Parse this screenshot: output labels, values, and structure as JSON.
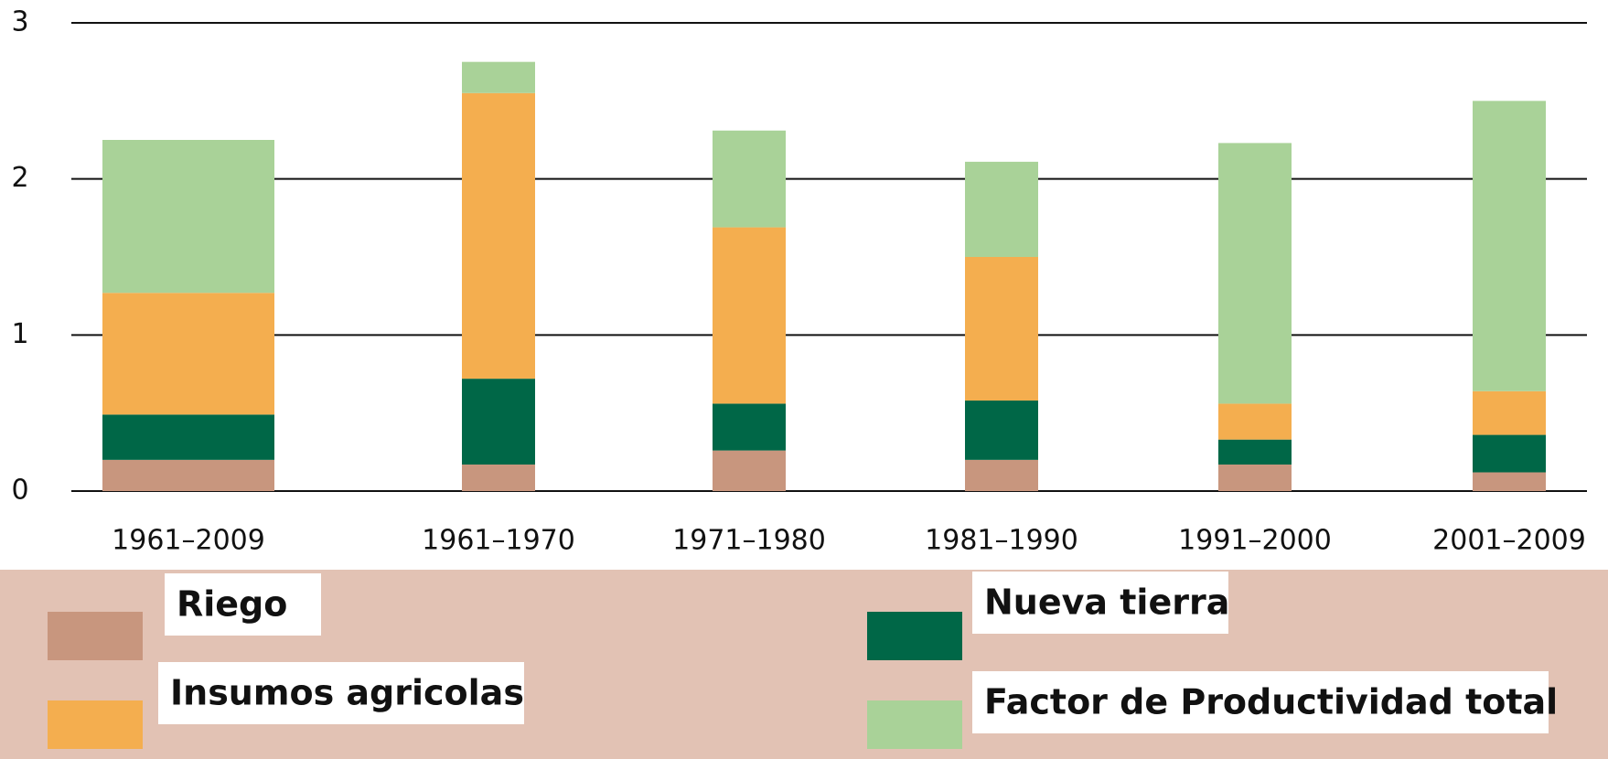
{
  "chart_data": {
    "type": "bar",
    "stacked": true,
    "categories": [
      "1961–2009",
      "1961–1970",
      "1971–1980",
      "1981–1990",
      "1991–2000",
      "2001–2009"
    ],
    "series": [
      {
        "name": "Riego",
        "color": "#c8967e",
        "values": [
          0.2,
          0.17,
          0.26,
          0.2,
          0.17,
          0.12
        ]
      },
      {
        "name": "Nueva tierra",
        "color": "#006747",
        "values": [
          0.29,
          0.55,
          0.3,
          0.38,
          0.16,
          0.24
        ]
      },
      {
        "name": "Insumos agricolas",
        "color": "#f4ae4f",
        "values": [
          0.78,
          1.83,
          1.13,
          0.92,
          0.23,
          0.28
        ]
      },
      {
        "name": "Factor de Productividad total",
        "color": "#a9d298",
        "values": [
          0.98,
          0.2,
          0.62,
          0.61,
          1.67,
          1.86
        ]
      }
    ],
    "ylim": [
      0,
      3
    ],
    "yticks": [
      0,
      1,
      2,
      3
    ],
    "grid": true
  }
}
